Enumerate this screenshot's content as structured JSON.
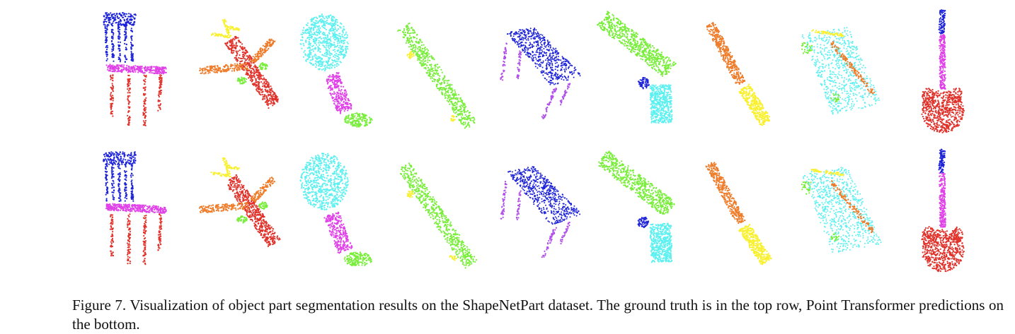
{
  "caption": {
    "label": "Figure 7.",
    "text": "Visualization of object part segmentation results on the ShapeNetPart dataset. The ground truth is in the top row, Point Transformer predictions on the bottom."
  },
  "rows": [
    "ground-truth",
    "prediction"
  ],
  "objects": [
    "chair",
    "airplane",
    "lamp",
    "skateboard",
    "table",
    "pistol",
    "knife",
    "cap",
    "guitar"
  ],
  "colors": {
    "blue": "#1c22d8",
    "magenta": "#e040e8",
    "red": "#e0322a",
    "orange": "#ee7c2a",
    "yellow": "#f8f030",
    "cyan": "#5cf0f0",
    "green": "#78ee3a",
    "violet": "#b050e8",
    "darkblue": "#1e1e9e"
  }
}
